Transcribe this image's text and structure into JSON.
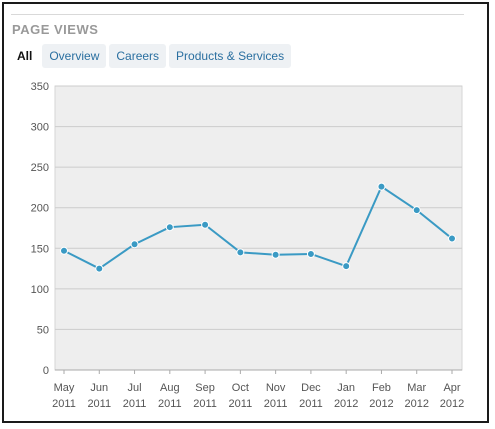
{
  "header": {
    "title": "PAGE VIEWS"
  },
  "tabs": [
    {
      "label": "All",
      "active": true
    },
    {
      "label": "Overview",
      "active": false
    },
    {
      "label": "Careers",
      "active": false
    },
    {
      "label": "Products & Services",
      "active": false
    }
  ],
  "colors": {
    "line": "#3a9ac4",
    "plot_background": "#eeeeee",
    "gridline": "#cccccc",
    "tab_text": "#2a6fa0",
    "title": "#999999"
  },
  "chart_data": {
    "type": "line",
    "title": "",
    "xlabel": "",
    "ylabel": "",
    "ylim": [
      0,
      350
    ],
    "yticks": [
      0,
      50,
      100,
      150,
      200,
      250,
      300,
      350
    ],
    "grid": true,
    "categories": [
      {
        "month": "May",
        "year": "2011"
      },
      {
        "month": "Jun",
        "year": "2011"
      },
      {
        "month": "Jul",
        "year": "2011"
      },
      {
        "month": "Aug",
        "year": "2011"
      },
      {
        "month": "Sep",
        "year": "2011"
      },
      {
        "month": "Oct",
        "year": "2011"
      },
      {
        "month": "Nov",
        "year": "2011"
      },
      {
        "month": "Dec",
        "year": "2011"
      },
      {
        "month": "Jan",
        "year": "2012"
      },
      {
        "month": "Feb",
        "year": "2012"
      },
      {
        "month": "Mar",
        "year": "2012"
      },
      {
        "month": "Apr",
        "year": "2012"
      }
    ],
    "series": [
      {
        "values": [
          147,
          125,
          155,
          176,
          179,
          145,
          142,
          143,
          128,
          226,
          197,
          162
        ]
      }
    ]
  }
}
